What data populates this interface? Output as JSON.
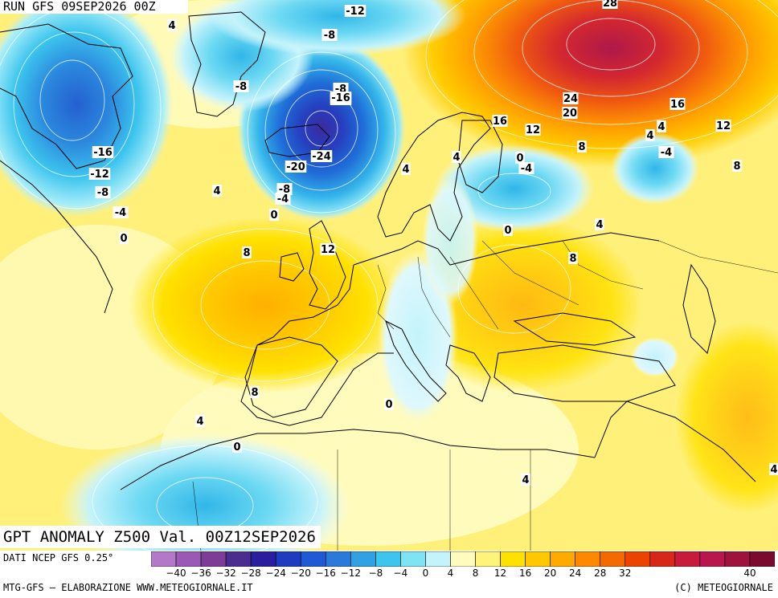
{
  "header": {
    "run_title": "RUN GFS 09SEP2026 00Z"
  },
  "map": {
    "product_title": "GPT ANOMALY Z500 Val. 00Z12SEP2026",
    "region": "Europe",
    "variable": "500 hPa geopotential height anomaly",
    "contour_labels": [
      "-12",
      "-8",
      "-8",
      "-8",
      "-16",
      "-16",
      "-12",
      "-8",
      "-4",
      "0",
      "-16",
      "-24",
      "-20",
      "-8",
      "-4",
      "0",
      "4",
      "4",
      "4",
      "4",
      "4",
      "8",
      "12",
      "8",
      "4",
      "0",
      "-4",
      "0",
      "4",
      "8",
      "4",
      "0",
      "12",
      "16",
      "16",
      "24",
      "20",
      "28",
      "8",
      "0",
      "-4",
      "8",
      "12",
      "4",
      "4"
    ]
  },
  "legend": {
    "data_source": "DATI NCEP GFS 0.25°",
    "scale_labels": [
      "−40",
      "−36",
      "−32",
      "−28",
      "−24",
      "−20",
      "−16",
      "−12",
      "−8",
      "−4",
      "0",
      "4",
      "8",
      "12",
      "16",
      "20",
      "24",
      "28",
      "32",
      "40"
    ],
    "colors": [
      "#b378c8",
      "#9b59b6",
      "#7d3c98",
      "#4a2d8f",
      "#2a1e9e",
      "#1f3bbf",
      "#2059d6",
      "#2b7ad9",
      "#31a1e3",
      "#3dc5ee",
      "#7de3f5",
      "#c4f3fb",
      "#fffbbd",
      "#fff37a",
      "#ffe100",
      "#ffc800",
      "#ffaa00",
      "#ff8800",
      "#f56a00",
      "#ec4400",
      "#d9261a",
      "#c81a3a",
      "#b8174e",
      "#a0123e",
      "#7a0a2e"
    ]
  },
  "footer": {
    "credit": "MTG-GFS – ELABORAZIONE WWW.METEOGIORNALE.IT",
    "copyright": "(C) METEOGIORNALE"
  }
}
